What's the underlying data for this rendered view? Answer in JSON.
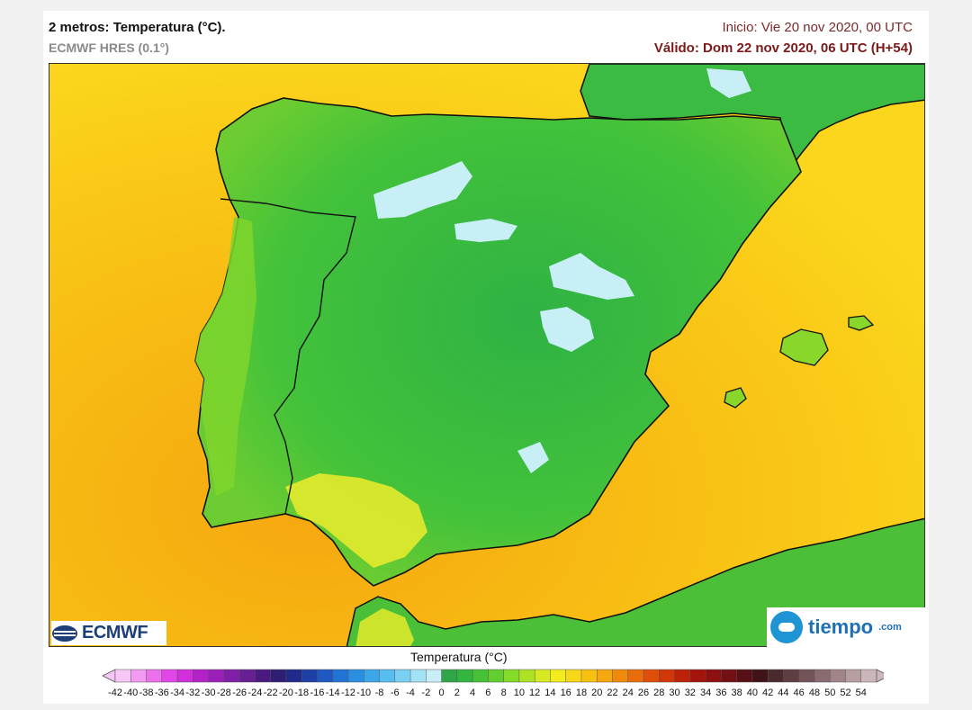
{
  "header": {
    "title": "2 metros: Temperatura (°C).",
    "model": "ECMWF HRES (0.1°)",
    "init": "Inicio: Vie 20 nov 2020, 00 UTC",
    "valid": "Válido: Dom 22 nov 2020, 06 UTC (H+54)"
  },
  "logos": {
    "left": "ECMWF",
    "right": "tiempo",
    "right_domain": ".com"
  },
  "colorbar": {
    "title": "Temperatura (°C)",
    "ticks": [
      "-42",
      "-40",
      "-38",
      "-36",
      "-34",
      "-32",
      "-30",
      "-28",
      "-26",
      "-24",
      "-22",
      "-20",
      "-18",
      "-16",
      "-14",
      "-12",
      "-10",
      "-8",
      "-6",
      "-4",
      "-2",
      "0",
      "2",
      "4",
      "6",
      "8",
      "10",
      "12",
      "14",
      "16",
      "18",
      "20",
      "22",
      "24",
      "26",
      "28",
      "30",
      "32",
      "34",
      "36",
      "38",
      "40",
      "42",
      "44",
      "46",
      "48",
      "50",
      "52",
      "54"
    ],
    "colors": [
      "#f6c6f6",
      "#f39bf3",
      "#ec6fec",
      "#e146e6",
      "#d02fd9",
      "#b521c9",
      "#9a1eb8",
      "#7f1ea6",
      "#661f95",
      "#4b1a80",
      "#2f1f74",
      "#1f2a8a",
      "#1d3fa6",
      "#1f58c2",
      "#2273d6",
      "#2a8fe0",
      "#3ca7e8",
      "#57bdee",
      "#7ad0f2",
      "#a3e1f5",
      "#c9eef7",
      "#2fa648",
      "#33b53e",
      "#45c236",
      "#62cf2f",
      "#86da2a",
      "#aee226",
      "#d6ea23",
      "#f3ec1f",
      "#f7d718",
      "#f7c112",
      "#f5a70f",
      "#f08a0c",
      "#e96c0a",
      "#e04f09",
      "#d13708",
      "#bd2209",
      "#a5140c",
      "#8d0f10",
      "#721013",
      "#561016",
      "#3f1318",
      "#4a2a2e",
      "#5e3e42",
      "#735458",
      "#8a6b6f",
      "#a08488",
      "#b79ea1",
      "#cbb7b9"
    ]
  },
  "map_colors": {
    "sea_warm": "#f7b80f",
    "sea_mid": "#f9d11a",
    "land_green": "#3dbb3e",
    "land_light": "#8ad72b",
    "land_yellow": "#e6ea2b",
    "cold_patch": "#c8eef6",
    "border": "#111111"
  }
}
